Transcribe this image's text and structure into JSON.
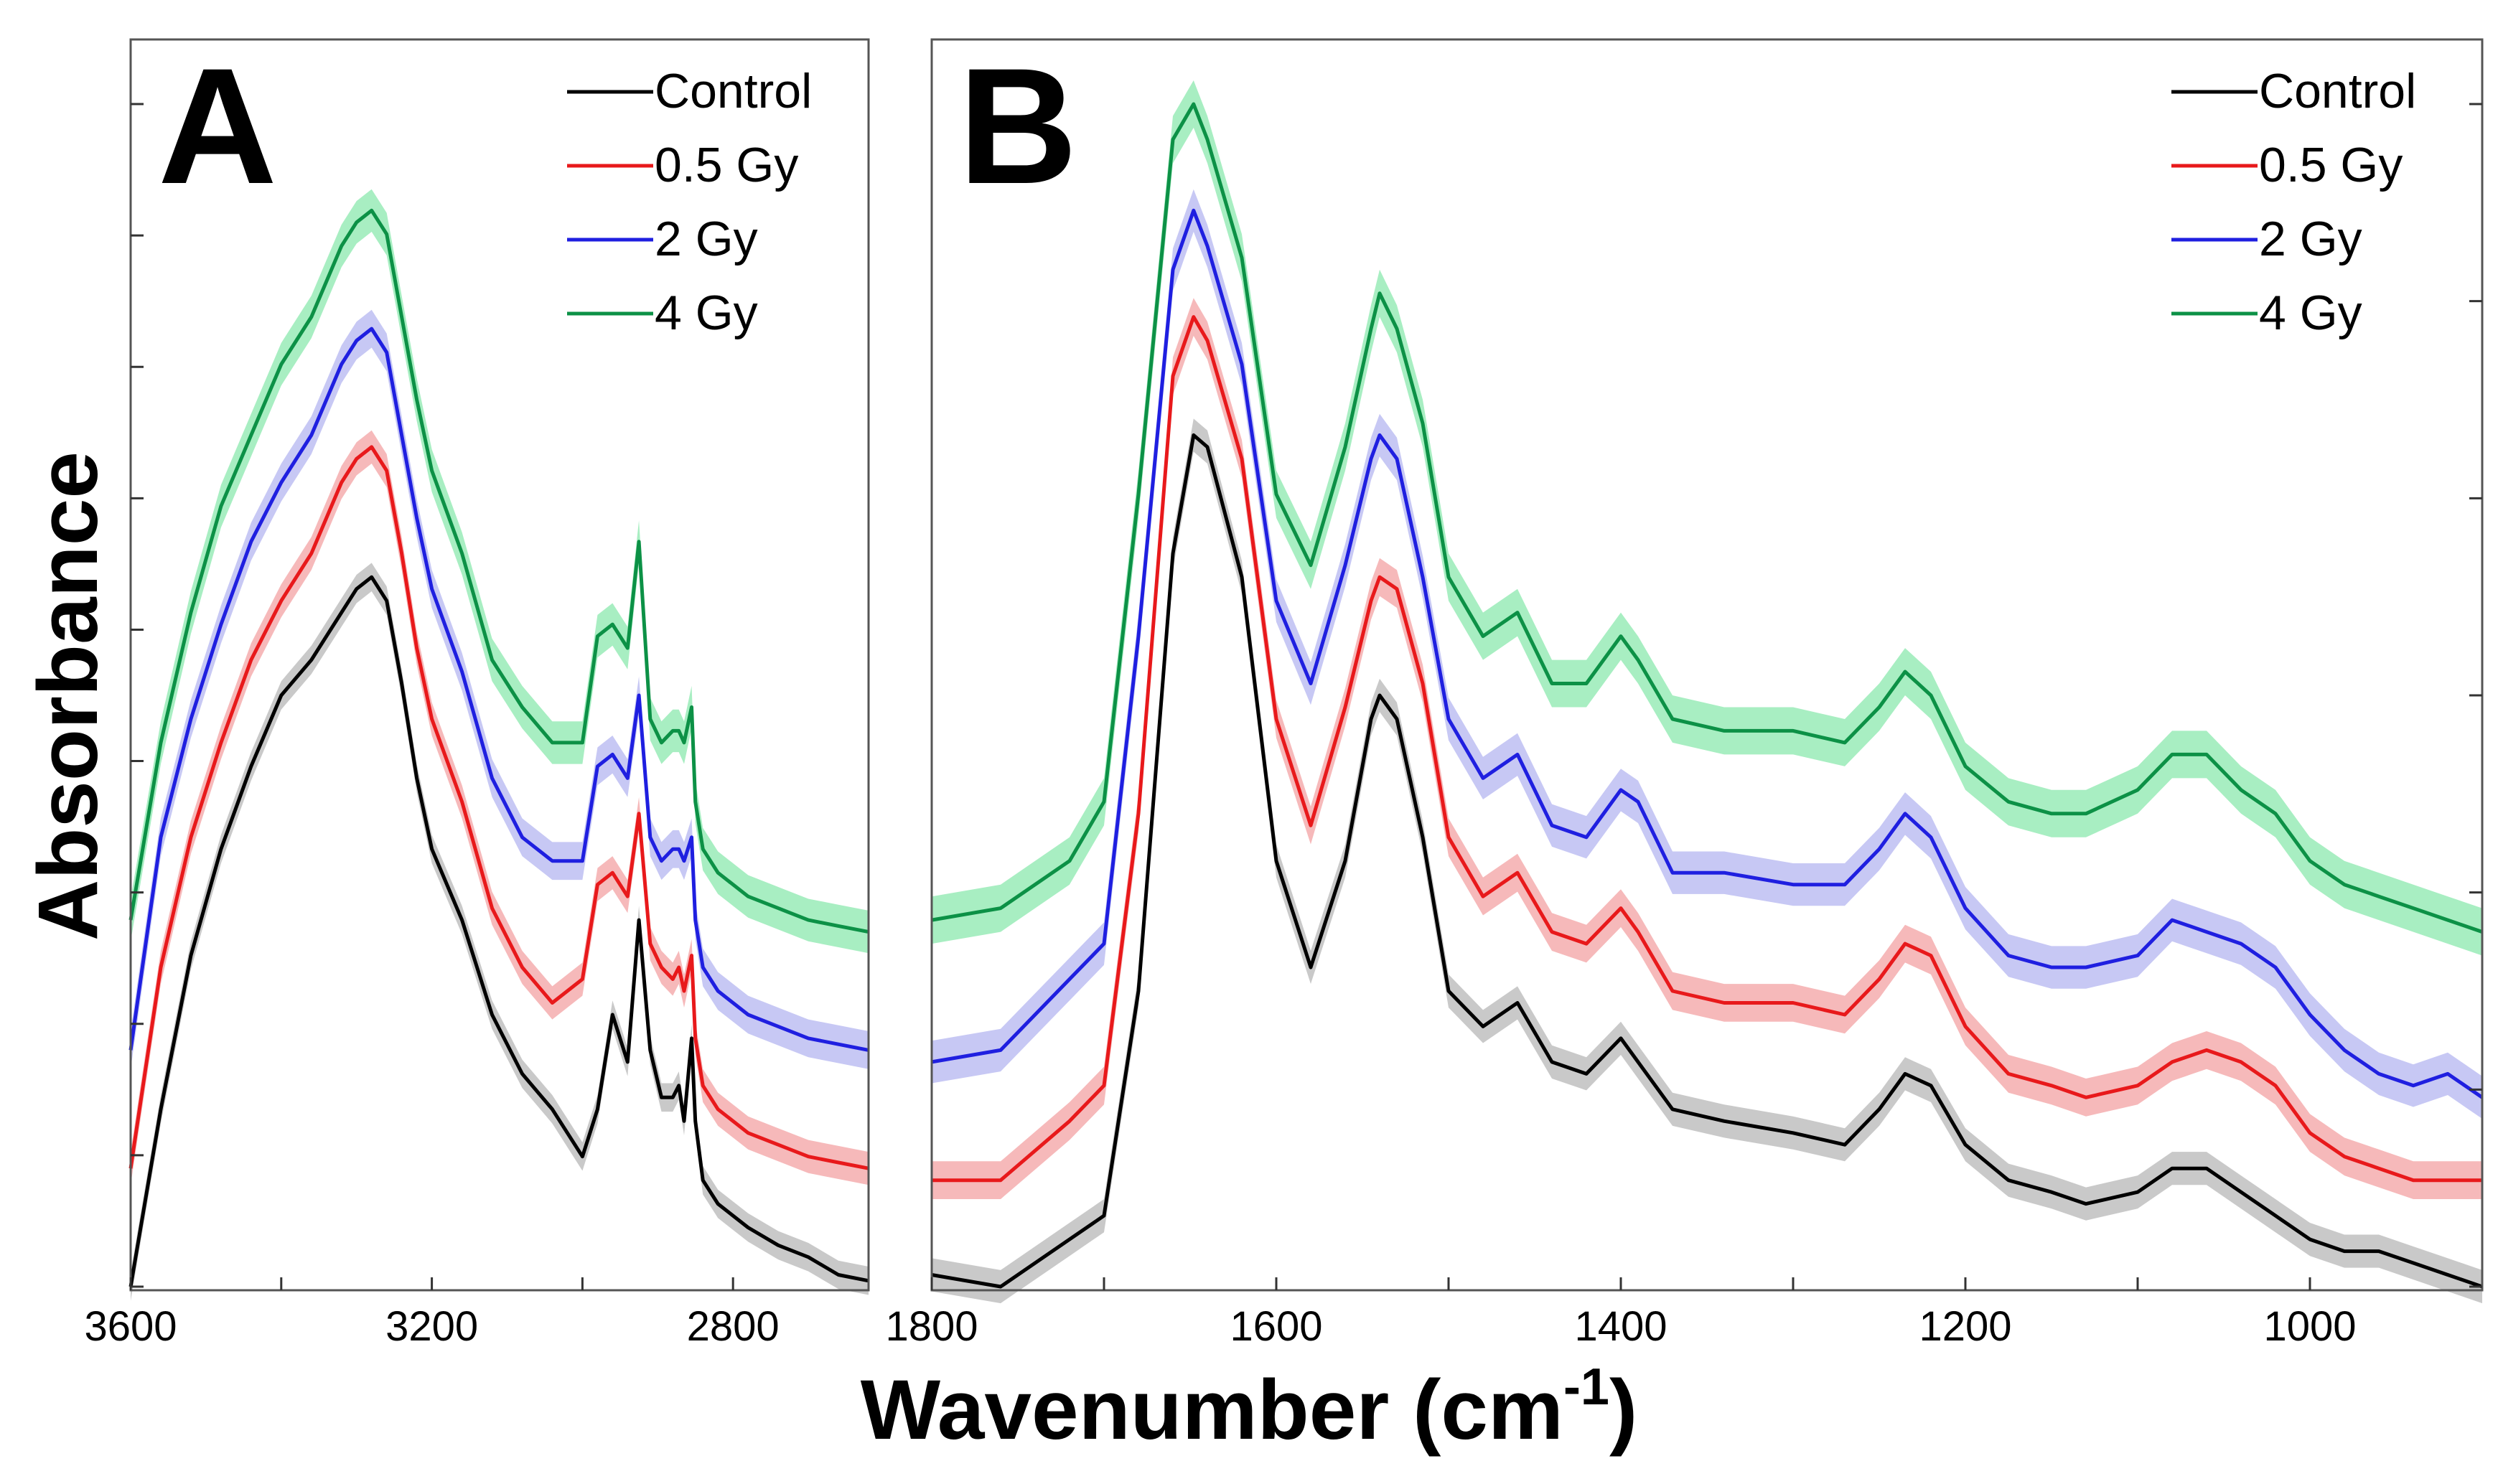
{
  "colors": {
    "Control": "#000000",
    "0.5 Gy": "#e8191b",
    "2 Gy": "#1f1fe0",
    "4 Gy": "#0c9146",
    "Control_band": "#c9c9c9",
    "0.5 Gy_band": "#f6b9ba",
    "2 Gy_band": "#c7c8f4",
    "4 Gy_band": "#a8eec2"
  },
  "chart_data": [
    {
      "type": "line",
      "panel": "A",
      "xlabel": "Wavenumber (cm-1)",
      "ylabel": "Absorbance",
      "xlim": [
        3600,
        2620
      ],
      "ylim": [
        0,
        1.0
      ],
      "xticks": [
        "3600",
        "3200",
        "2800"
      ],
      "xtick_values": [
        3600,
        3200,
        2800
      ],
      "legend": [
        "Control",
        "0.5 Gy",
        "2 Gy",
        "4 Gy"
      ],
      "legend_position": "top-right",
      "x": [
        3600,
        3560,
        3520,
        3480,
        3440,
        3400,
        3360,
        3320,
        3300,
        3280,
        3260,
        3240,
        3220,
        3200,
        3160,
        3120,
        3080,
        3040,
        3000,
        2980,
        2960,
        2940,
        2925,
        2910,
        2895,
        2880,
        2872,
        2865,
        2855,
        2850,
        2840,
        2820,
        2780,
        2740,
        2700,
        2660,
        2620
      ],
      "series": [
        {
          "name": "Control",
          "band": 0.012,
          "values": [
            0.0,
            0.15,
            0.28,
            0.37,
            0.44,
            0.5,
            0.53,
            0.57,
            0.59,
            0.6,
            0.58,
            0.51,
            0.43,
            0.37,
            0.31,
            0.23,
            0.18,
            0.15,
            0.11,
            0.15,
            0.23,
            0.19,
            0.31,
            0.2,
            0.16,
            0.16,
            0.17,
            0.14,
            0.21,
            0.14,
            0.09,
            0.07,
            0.05,
            0.035,
            0.025,
            0.01,
            0.005
          ]
        },
        {
          "name": "0.5 Gy",
          "band": 0.014,
          "values": [
            0.1,
            0.27,
            0.38,
            0.46,
            0.53,
            0.58,
            0.62,
            0.68,
            0.7,
            0.71,
            0.69,
            0.62,
            0.54,
            0.48,
            0.41,
            0.32,
            0.27,
            0.24,
            0.26,
            0.34,
            0.35,
            0.33,
            0.4,
            0.29,
            0.27,
            0.26,
            0.27,
            0.25,
            0.28,
            0.21,
            0.17,
            0.15,
            0.13,
            0.12,
            0.11,
            0.105,
            0.1
          ]
        },
        {
          "name": "2 Gy",
          "band": 0.016,
          "values": [
            0.2,
            0.38,
            0.48,
            0.56,
            0.63,
            0.68,
            0.72,
            0.78,
            0.8,
            0.81,
            0.79,
            0.72,
            0.65,
            0.59,
            0.52,
            0.43,
            0.38,
            0.36,
            0.36,
            0.44,
            0.45,
            0.43,
            0.5,
            0.38,
            0.36,
            0.37,
            0.37,
            0.36,
            0.38,
            0.31,
            0.27,
            0.25,
            0.23,
            0.22,
            0.21,
            0.205,
            0.2
          ]
        },
        {
          "name": "4 Gy",
          "band": 0.018,
          "values": [
            0.31,
            0.46,
            0.57,
            0.66,
            0.72,
            0.78,
            0.82,
            0.88,
            0.9,
            0.91,
            0.89,
            0.82,
            0.75,
            0.69,
            0.62,
            0.53,
            0.49,
            0.46,
            0.46,
            0.55,
            0.56,
            0.54,
            0.63,
            0.48,
            0.46,
            0.47,
            0.47,
            0.46,
            0.49,
            0.41,
            0.37,
            0.35,
            0.33,
            0.32,
            0.31,
            0.305,
            0.3
          ]
        }
      ]
    },
    {
      "type": "line",
      "panel": "B",
      "xlabel": "Wavenumber (cm-1)",
      "ylabel": "Absorbance",
      "xlim": [
        1800,
        900
      ],
      "ylim": [
        0,
        1.0
      ],
      "xticks": [
        "1800",
        "1600",
        "1400",
        "1200",
        "1000"
      ],
      "xtick_values": [
        1800,
        1600,
        1400,
        1200,
        1000
      ],
      "legend": [
        "Control",
        "0.5 Gy",
        "2 Gy",
        "4 Gy"
      ],
      "legend_position": "top-right",
      "x": [
        1800,
        1760,
        1720,
        1700,
        1680,
        1660,
        1648,
        1640,
        1620,
        1600,
        1580,
        1560,
        1545,
        1540,
        1530,
        1515,
        1500,
        1480,
        1460,
        1440,
        1420,
        1400,
        1390,
        1370,
        1340,
        1300,
        1270,
        1250,
        1235,
        1220,
        1200,
        1175,
        1150,
        1130,
        1100,
        1080,
        1060,
        1040,
        1020,
        1000,
        980,
        960,
        940,
        920,
        900
      ],
      "series": [
        {
          "name": "Control",
          "band": 0.014,
          "values": [
            0.01,
            0.0,
            0.04,
            0.06,
            0.25,
            0.62,
            0.72,
            0.71,
            0.6,
            0.36,
            0.27,
            0.36,
            0.48,
            0.5,
            0.48,
            0.38,
            0.25,
            0.22,
            0.24,
            0.19,
            0.18,
            0.21,
            0.19,
            0.15,
            0.14,
            0.13,
            0.12,
            0.15,
            0.18,
            0.17,
            0.12,
            0.09,
            0.08,
            0.07,
            0.08,
            0.1,
            0.1,
            0.08,
            0.06,
            0.04,
            0.03,
            0.03,
            0.02,
            0.01,
            0.0
          ]
        },
        {
          "name": "0.5 Gy",
          "band": 0.016,
          "values": [
            0.09,
            0.09,
            0.14,
            0.17,
            0.4,
            0.77,
            0.82,
            0.8,
            0.7,
            0.48,
            0.39,
            0.49,
            0.58,
            0.6,
            0.59,
            0.51,
            0.38,
            0.33,
            0.35,
            0.3,
            0.29,
            0.32,
            0.3,
            0.25,
            0.24,
            0.24,
            0.23,
            0.26,
            0.29,
            0.28,
            0.22,
            0.18,
            0.17,
            0.16,
            0.17,
            0.19,
            0.2,
            0.19,
            0.17,
            0.13,
            0.11,
            0.1,
            0.09,
            0.09,
            0.09
          ]
        },
        {
          "name": "2 Gy",
          "band": 0.018,
          "values": [
            0.19,
            0.2,
            0.26,
            0.29,
            0.55,
            0.86,
            0.91,
            0.88,
            0.78,
            0.58,
            0.51,
            0.61,
            0.7,
            0.72,
            0.7,
            0.6,
            0.48,
            0.43,
            0.45,
            0.39,
            0.38,
            0.42,
            0.41,
            0.35,
            0.35,
            0.34,
            0.34,
            0.37,
            0.4,
            0.38,
            0.32,
            0.28,
            0.27,
            0.27,
            0.28,
            0.31,
            0.3,
            0.29,
            0.27,
            0.23,
            0.2,
            0.18,
            0.17,
            0.18,
            0.16
          ]
        },
        {
          "name": "4 Gy",
          "band": 0.02,
          "values": [
            0.31,
            0.32,
            0.36,
            0.41,
            0.67,
            0.97,
            1.0,
            0.97,
            0.87,
            0.67,
            0.61,
            0.71,
            0.81,
            0.84,
            0.81,
            0.73,
            0.6,
            0.55,
            0.57,
            0.51,
            0.51,
            0.55,
            0.53,
            0.48,
            0.47,
            0.47,
            0.46,
            0.49,
            0.52,
            0.5,
            0.44,
            0.41,
            0.4,
            0.4,
            0.42,
            0.45,
            0.45,
            0.42,
            0.4,
            0.36,
            0.34,
            0.33,
            0.32,
            0.31,
            0.3
          ]
        }
      ]
    }
  ],
  "figure": {
    "y_axis_title": "Absorbance",
    "x_axis_title_main": "Wavenumber (cm",
    "x_axis_title_sup": "-1",
    "x_axis_title_end": ")",
    "panel_a_letter": "A",
    "panel_b_letter": "B"
  }
}
